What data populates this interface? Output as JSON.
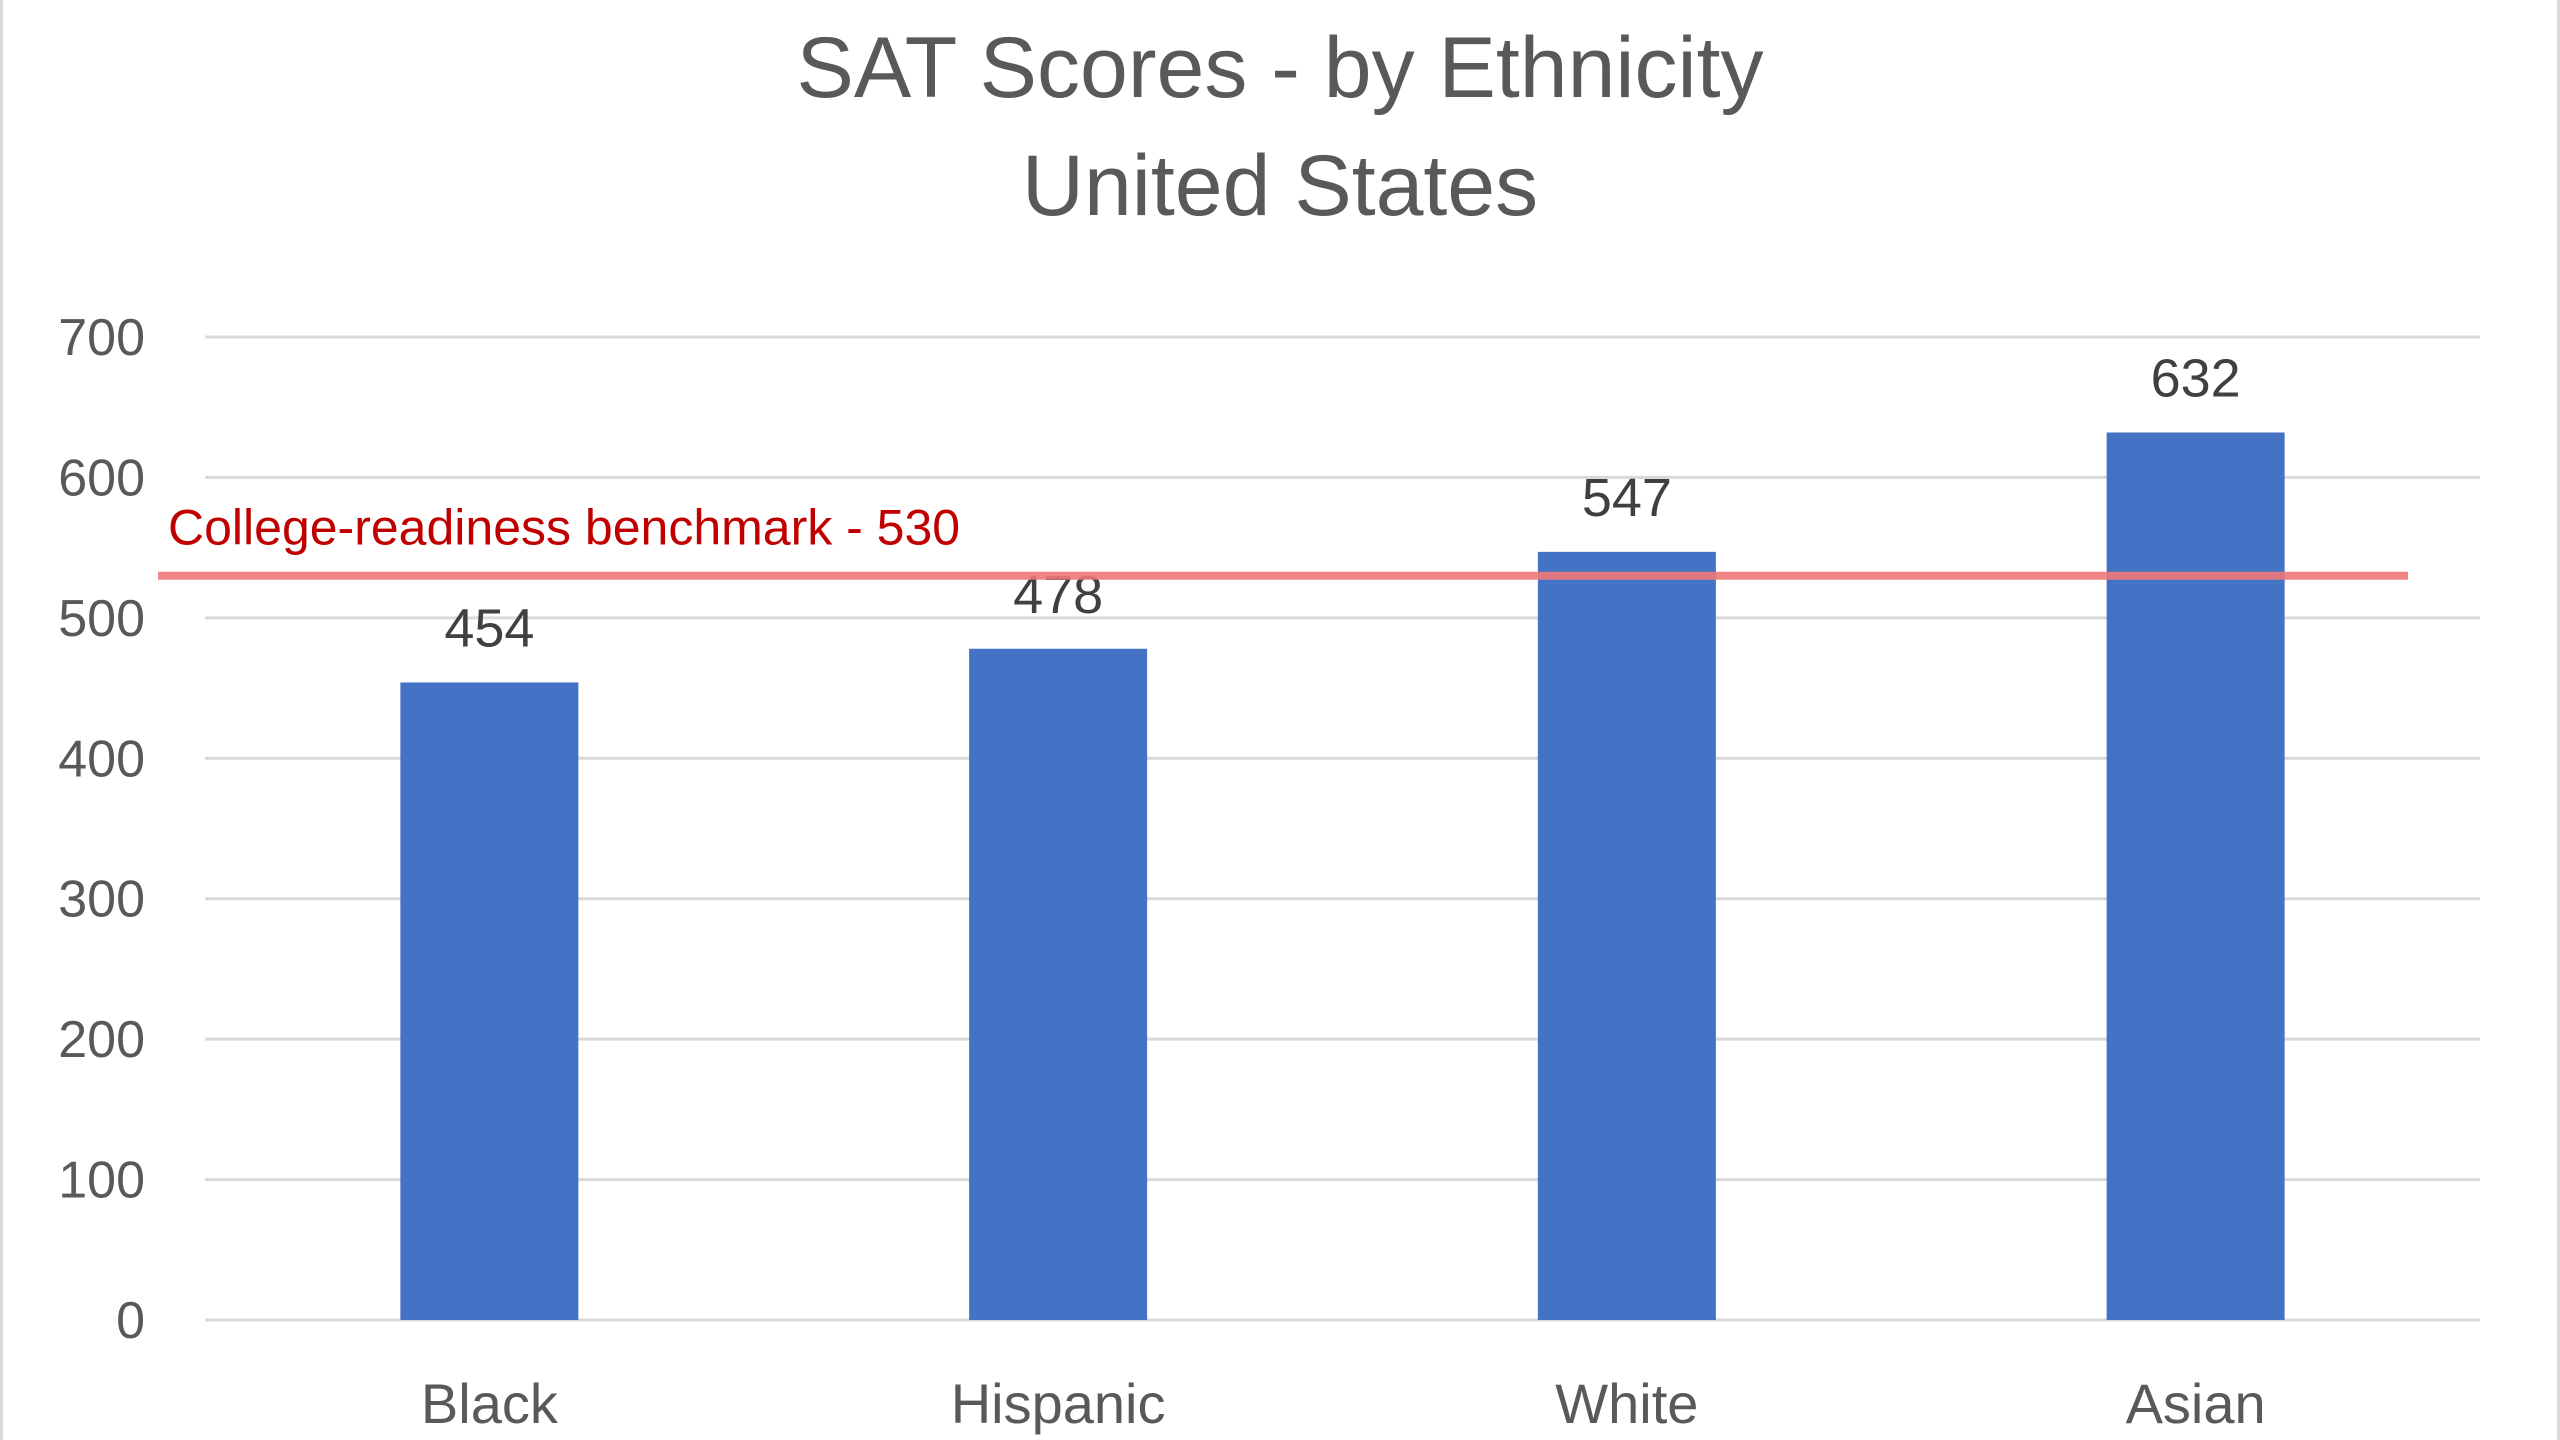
{
  "chart_data": {
    "type": "bar",
    "title": "SAT Scores - by Ethnicity",
    "subtitle": "United States",
    "xlabel": "",
    "ylabel": "",
    "categories": [
      "Black",
      "Hispanic",
      "White",
      "Asian"
    ],
    "values": [
      454,
      478,
      547,
      632
    ],
    "data_labels": [
      "454",
      "478",
      "547",
      "632"
    ],
    "ylim": [
      0,
      700
    ],
    "yticks": [
      0,
      100,
      200,
      300,
      400,
      500,
      600,
      700
    ],
    "grid": true,
    "legend": "none",
    "bar_color": "#4472C4",
    "reference_line": {
      "value": 530,
      "label": "College-readiness benchmark - 530",
      "color": "#F07878",
      "label_color": "#C00000"
    }
  }
}
